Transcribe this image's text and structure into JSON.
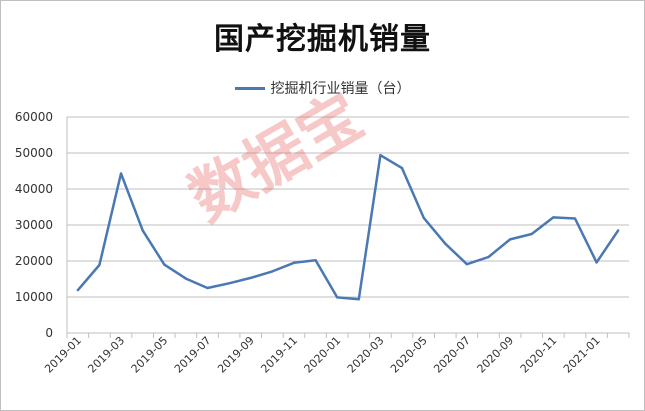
{
  "chart_data": {
    "type": "line",
    "title": "国产挖掘机销量",
    "legend": "挖掘机行业销量（台）",
    "legend_position": "top",
    "watermark": "数据宝",
    "colors": {
      "series": "#4a78b5",
      "grid": "#bfbfbf",
      "watermark": "#e86060"
    },
    "ylim": [
      0,
      60000
    ],
    "yticks": [
      0,
      10000,
      20000,
      30000,
      40000,
      50000,
      60000
    ],
    "grid": true,
    "x": [
      "2019-01",
      "2019-02",
      "2019-03",
      "2019-04",
      "2019-05",
      "2019-06",
      "2019-07",
      "2019-08",
      "2019-09",
      "2019-10",
      "2019-11",
      "2019-12",
      "2020-01",
      "2020-02",
      "2020-03",
      "2020-04",
      "2020-05",
      "2020-06",
      "2020-07",
      "2020-08",
      "2020-09",
      "2020-10",
      "2020-11",
      "2020-12",
      "2021-01",
      "2021-02"
    ],
    "xtick_labels": [
      "2019-01",
      "2019-03",
      "2019-05",
      "2019-07",
      "2019-09",
      "2019-11",
      "2020-01",
      "2020-03",
      "2020-05",
      "2020-07",
      "2020-09",
      "2020-11",
      "2021-01"
    ],
    "series": [
      {
        "name": "挖掘机行业销量（台）",
        "values": [
          11900,
          18900,
          44300,
          28500,
          19000,
          15100,
          12500,
          13800,
          15300,
          17100,
          19500,
          20200,
          9900,
          9400,
          49400,
          45800,
          32000,
          24800,
          19100,
          21100,
          26000,
          27500,
          32100,
          31800,
          19600,
          28500
        ]
      }
    ]
  }
}
